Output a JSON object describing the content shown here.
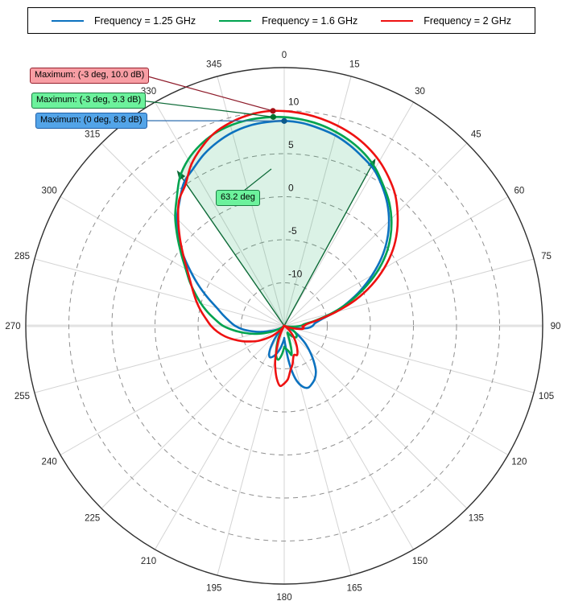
{
  "legend": {
    "items": [
      {
        "label": "Frequency = 1.25 GHz",
        "color": "#0C72BF"
      },
      {
        "label": "Frequency = 1.6 GHz",
        "color": "#00A34F"
      },
      {
        "label": "Frequency = 2 GHz",
        "color": "#EE1111"
      }
    ]
  },
  "annotations": {
    "max_red": {
      "text": "Maximum: (-3 deg, 10.0 dB)",
      "box_fill": "#F89EA4",
      "box_border": "#96222F",
      "leader_color": "#8E1B2A"
    },
    "max_green": {
      "text": "Maximum: (-3 deg, 9.3 dB)",
      "box_fill": "#6CF29C",
      "box_border": "#1B7E44",
      "leader_color": "#0E6B38"
    },
    "max_blue": {
      "text": "Maximum: (0 deg, 8.8 dB)",
      "box_fill": "#53A4E8",
      "box_border": "#1F5FA8",
      "leader_color": "#2F6FB0"
    },
    "beamwidth": {
      "text": "63.2 deg",
      "box_fill": "#6CF29C",
      "box_border": "#1B7E44",
      "leader_color": "#0E6B38"
    }
  },
  "chart_data": {
    "type": "line",
    "subtype": "polar-antenna-pattern",
    "title": "",
    "angle_unit": "deg",
    "angle_zero_position": "top",
    "angle_direction": "clockwise",
    "angle_ticks": [
      0,
      15,
      30,
      45,
      60,
      75,
      90,
      105,
      120,
      135,
      150,
      165,
      180,
      195,
      210,
      225,
      240,
      255,
      270,
      285,
      300,
      315,
      330,
      345
    ],
    "r_unit": "dB",
    "r_range": [
      -15,
      15
    ],
    "r_ticks": [
      10,
      5,
      0,
      -5,
      -10
    ],
    "grid": {
      "spokes_every_deg": 15,
      "circles": "dashed"
    },
    "legend_position": "top",
    "maxima": [
      {
        "series": "Frequency = 2 GHz",
        "angle_deg": -3,
        "value_db": 10.0,
        "label": "Maximum: (-3 deg, 10.0 dB)",
        "marker_color": "#A50F15"
      },
      {
        "series": "Frequency = 1.6 GHz",
        "angle_deg": -3,
        "value_db": 9.3,
        "label": "Maximum: (-3 deg, 9.3 dB)",
        "marker_color": "#00702F"
      },
      {
        "series": "Frequency = 1.25 GHz",
        "angle_deg": 0,
        "value_db": 8.8,
        "label": "Maximum: (0 deg, 8.8 dB)",
        "marker_color": "#0B5A8C"
      }
    ],
    "beamwidth": {
      "series": "Frequency = 1.6 GHz",
      "label": "63.2 deg",
      "width_deg": 63.2,
      "from_deg": -34.6,
      "to_deg": 28.6,
      "edge_level_db": 6.3,
      "fill_color": "rgba(13,166,84,0.15)",
      "edge_color": "#0E6B38"
    },
    "series": [
      {
        "name": "Frequency = 1.25 GHz",
        "color": "#0C72BF",
        "points": [
          [
            -180,
            -13.5
          ],
          [
            -175,
            -13.0
          ],
          [
            -170,
            -12.3
          ],
          [
            -165,
            -11.7
          ],
          [
            -160,
            -11.2
          ],
          [
            -155,
            -11.0
          ],
          [
            -150,
            -11.6
          ],
          [
            -145,
            -12.8
          ],
          [
            -140,
            -14.0
          ],
          [
            -135,
            -14.8
          ],
          [
            -130,
            -15
          ],
          [
            -125,
            -14.6
          ],
          [
            -120,
            -14.2
          ],
          [
            -115,
            -13.8
          ],
          [
            -110,
            -13.2
          ],
          [
            -105,
            -12.3
          ],
          [
            -100,
            -11.3
          ],
          [
            -95,
            -10.2
          ],
          [
            -90,
            -9.3
          ],
          [
            -85,
            -8.6
          ],
          [
            -80,
            -7.8
          ],
          [
            -75,
            -6.9
          ],
          [
            -70,
            -5.6
          ],
          [
            -65,
            -4.1
          ],
          [
            -60,
            -2.5
          ],
          [
            -55,
            -0.7
          ],
          [
            -50,
            1.0
          ],
          [
            -45,
            2.6
          ],
          [
            -40,
            3.9
          ],
          [
            -35,
            5.3
          ],
          [
            -30,
            6.1
          ],
          [
            -25,
            7.0
          ],
          [
            -20,
            7.7
          ],
          [
            -15,
            8.25
          ],
          [
            -10,
            8.6
          ],
          [
            -5,
            8.75
          ],
          [
            0,
            8.8
          ],
          [
            5,
            8.65
          ],
          [
            10,
            8.3
          ],
          [
            15,
            7.9
          ],
          [
            20,
            7.3
          ],
          [
            25,
            6.6
          ],
          [
            30,
            5.9
          ],
          [
            35,
            4.8
          ],
          [
            40,
            3.6
          ],
          [
            45,
            2.2
          ],
          [
            50,
            0.6
          ],
          [
            55,
            -1.2
          ],
          [
            60,
            -3.2
          ],
          [
            65,
            -5.2
          ],
          [
            70,
            -7.2
          ],
          [
            75,
            -9.0
          ],
          [
            80,
            -10.6
          ],
          [
            85,
            -11.4
          ],
          [
            90,
            -11.7
          ],
          [
            95,
            -12.2
          ],
          [
            100,
            -13.2
          ],
          [
            105,
            -14.2
          ],
          [
            110,
            -14.8
          ],
          [
            115,
            -14.4
          ],
          [
            120,
            -13.6
          ],
          [
            125,
            -12.8
          ],
          [
            130,
            -11.8
          ],
          [
            135,
            -10.8
          ],
          [
            140,
            -9.7
          ],
          [
            145,
            -8.6
          ],
          [
            150,
            -7.9
          ],
          [
            155,
            -7.5
          ],
          [
            159,
            -7.3
          ],
          [
            163,
            -7.6
          ],
          [
            167,
            -8.4
          ],
          [
            170,
            -9.5
          ],
          [
            173,
            -11.0
          ],
          [
            176,
            -12.5
          ],
          [
            180,
            -13.5
          ]
        ]
      },
      {
        "name": "Frequency = 1.6 GHz",
        "color": "#00A34F",
        "points": [
          [
            -180,
            -12.5
          ],
          [
            -175,
            -11.6
          ],
          [
            -170,
            -11.0
          ],
          [
            -165,
            -11.4
          ],
          [
            -160,
            -12.4
          ],
          [
            -155,
            -13.4
          ],
          [
            -150,
            -14.2
          ],
          [
            -145,
            -14.7
          ],
          [
            -140,
            -15
          ],
          [
            -135,
            -15
          ],
          [
            -130,
            -15
          ],
          [
            -125,
            -14.7
          ],
          [
            -120,
            -14.2
          ],
          [
            -115,
            -13.4
          ],
          [
            -110,
            -12.5
          ],
          [
            -105,
            -11.4
          ],
          [
            -100,
            -10.3
          ],
          [
            -95,
            -9.1
          ],
          [
            -90,
            -7.9
          ],
          [
            -85,
            -7.0
          ],
          [
            -80,
            -6.0
          ],
          [
            -75,
            -5.0
          ],
          [
            -70,
            -4.0
          ],
          [
            -65,
            -2.9
          ],
          [
            -60,
            -1.8
          ],
          [
            -55,
            -0.4
          ],
          [
            -50,
            1.2
          ],
          [
            -45,
            2.9
          ],
          [
            -40,
            4.4
          ],
          [
            -35,
            6.1
          ],
          [
            -30,
            7.3
          ],
          [
            -25,
            8.15
          ],
          [
            -20,
            8.75
          ],
          [
            -15,
            9.1
          ],
          [
            -10,
            9.27
          ],
          [
            -5,
            9.3
          ],
          [
            0,
            9.25
          ],
          [
            5,
            9.05
          ],
          [
            10,
            8.75
          ],
          [
            15,
            8.3
          ],
          [
            20,
            7.75
          ],
          [
            25,
            7.05
          ],
          [
            30,
            6.15
          ],
          [
            35,
            5.0
          ],
          [
            40,
            3.9
          ],
          [
            45,
            2.6
          ],
          [
            50,
            1.1
          ],
          [
            55,
            -0.6
          ],
          [
            60,
            -2.6
          ],
          [
            65,
            -4.8
          ],
          [
            70,
            -7.0
          ],
          [
            75,
            -9.2
          ],
          [
            80,
            -11.2
          ],
          [
            85,
            -12.6
          ],
          [
            90,
            -13.1
          ],
          [
            95,
            -13.9
          ],
          [
            100,
            -14.6
          ],
          [
            105,
            -14.9
          ],
          [
            110,
            -14.6
          ],
          [
            115,
            -14.1
          ],
          [
            120,
            -13.6
          ],
          [
            125,
            -13.3
          ],
          [
            130,
            -13.1
          ],
          [
            135,
            -13.1
          ],
          [
            140,
            -13.3
          ],
          [
            145,
            -13.6
          ],
          [
            150,
            -13.9
          ],
          [
            155,
            -14.1
          ],
          [
            160,
            -13.2
          ],
          [
            163,
            -12.2
          ],
          [
            166,
            -11.5
          ],
          [
            170,
            -12.0
          ],
          [
            175,
            -12.3
          ],
          [
            180,
            -12.5
          ]
        ]
      },
      {
        "name": "Frequency = 2 GHz",
        "color": "#EE1111",
        "points": [
          [
            -180,
            -8.3
          ],
          [
            -176,
            -8.0
          ],
          [
            -172,
            -8.8
          ],
          [
            -168,
            -10.0
          ],
          [
            -165,
            -11.0
          ],
          [
            -160,
            -12.8
          ],
          [
            -155,
            -14.0
          ],
          [
            -150,
            -14.8
          ],
          [
            -145,
            -14.8
          ],
          [
            -140,
            -14.5
          ],
          [
            -135,
            -14.0
          ],
          [
            -130,
            -13.2
          ],
          [
            -125,
            -12.4
          ],
          [
            -120,
            -11.5
          ],
          [
            -115,
            -10.7
          ],
          [
            -110,
            -9.8
          ],
          [
            -105,
            -8.9
          ],
          [
            -100,
            -8.0
          ],
          [
            -95,
            -7.2
          ],
          [
            -90,
            -6.5
          ],
          [
            -85,
            -5.9
          ],
          [
            -80,
            -5.2
          ],
          [
            -75,
            -4.5
          ],
          [
            -70,
            -3.8
          ],
          [
            -65,
            -3.0
          ],
          [
            -60,
            -2.0
          ],
          [
            -55,
            -0.7
          ],
          [
            -50,
            0.8
          ],
          [
            -45,
            2.4
          ],
          [
            -40,
            4.0
          ],
          [
            -35,
            5.0
          ],
          [
            -30,
            6.6
          ],
          [
            -25,
            7.8
          ],
          [
            -20,
            8.8
          ],
          [
            -15,
            9.4
          ],
          [
            -10,
            9.8
          ],
          [
            -5,
            10.0
          ],
          [
            0,
            9.95
          ],
          [
            5,
            9.75
          ],
          [
            10,
            9.45
          ],
          [
            15,
            9.05
          ],
          [
            20,
            8.55
          ],
          [
            25,
            7.9
          ],
          [
            30,
            7.1
          ],
          [
            35,
            6.1
          ],
          [
            40,
            5.0
          ],
          [
            45,
            3.6
          ],
          [
            50,
            2.1
          ],
          [
            55,
            0.4
          ],
          [
            60,
            -1.6
          ],
          [
            65,
            -3.8
          ],
          [
            70,
            -6.2
          ],
          [
            75,
            -8.8
          ],
          [
            80,
            -11.0
          ],
          [
            85,
            -12.3
          ],
          [
            90,
            -12.7
          ],
          [
            92,
            -12.9
          ],
          [
            96,
            -12.7
          ],
          [
            100,
            -12.9
          ],
          [
            104,
            -13.6
          ],
          [
            108,
            -14.4
          ],
          [
            112,
            -15
          ],
          [
            120,
            -15
          ],
          [
            126,
            -14.7
          ],
          [
            132,
            -14.2
          ],
          [
            138,
            -13.5
          ],
          [
            144,
            -12.8
          ],
          [
            150,
            -12.0
          ],
          [
            156,
            -11.3
          ],
          [
            162,
            -11.4
          ],
          [
            168,
            -10.4
          ],
          [
            172,
            -9.8
          ],
          [
            176,
            -8.8
          ],
          [
            180,
            -8.3
          ]
        ]
      }
    ]
  }
}
